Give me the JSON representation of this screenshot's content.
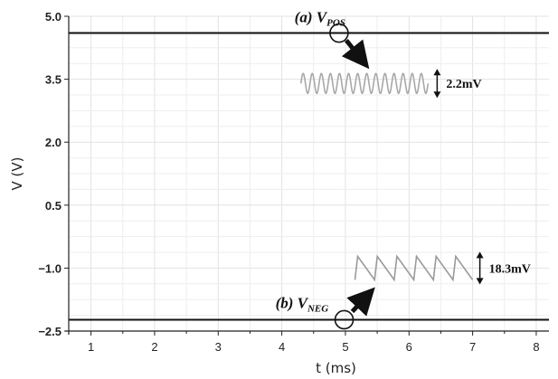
{
  "chart_data": {
    "type": "line",
    "xlabel": "t (ms)",
    "ylabel": "V (V)",
    "xlim": [
      0.65,
      8.2
    ],
    "ylim": [
      -2.5,
      5.0
    ],
    "x_ticks": [
      1,
      2,
      3,
      4,
      5,
      6,
      7,
      8
    ],
    "y_ticks": [
      5.0,
      3.5,
      2.0,
      0.5,
      -1.0,
      -2.5
    ],
    "y_tick_labels": [
      "5.0",
      "3.5",
      "2.0",
      "0.5",
      "−1.0",
      "−2.5"
    ],
    "grid": true,
    "series": [
      {
        "key": "vpos",
        "label_prefix": "(a) V",
        "label_sub": "POS",
        "x": [
          0.65,
          8.2
        ],
        "y": [
          4.6,
          4.6
        ],
        "color": "#111111"
      },
      {
        "key": "vneg",
        "label_prefix": "(b) V",
        "label_sub": "NEG",
        "x": [
          0.65,
          8.2
        ],
        "y": [
          -2.23,
          -2.23
        ],
        "color": "#111111"
      }
    ],
    "insets": [
      {
        "key": "vpos_ripple",
        "label": "2.2mV",
        "shape": "sine",
        "x_range": [
          4.3,
          6.3
        ],
        "y_center": 3.4,
        "color": "#a8a8a8"
      },
      {
        "key": "vneg_ripple",
        "label": "18.3mV",
        "shape": "sawtooth",
        "x_range": [
          5.15,
          7.0
        ],
        "y_center": -1.0,
        "color": "#9a9a9a"
      }
    ]
  }
}
